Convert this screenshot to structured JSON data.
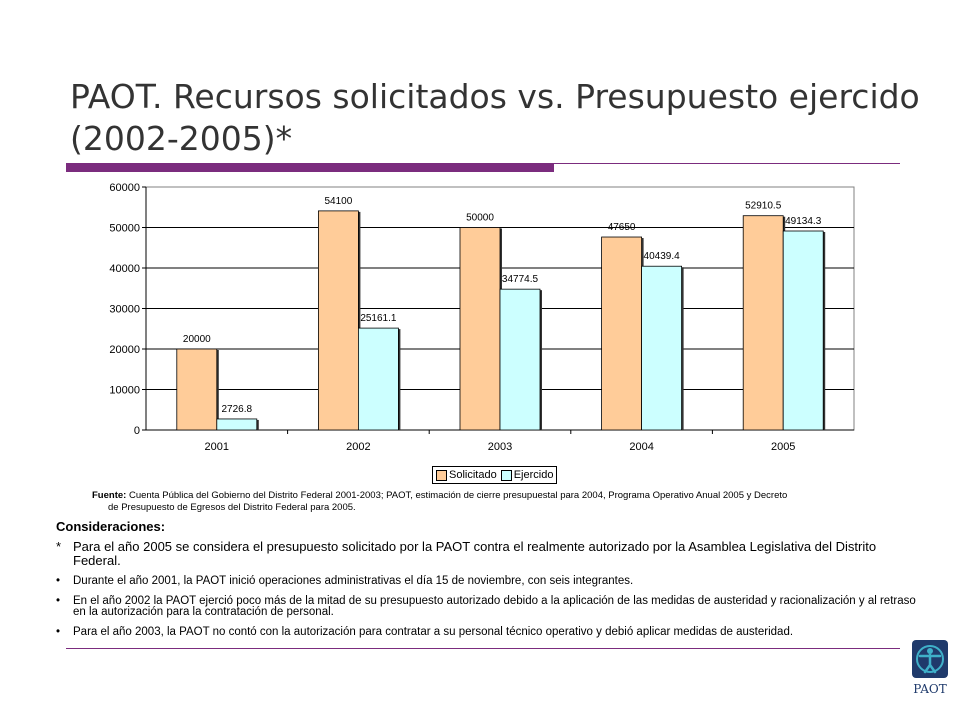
{
  "slide": {
    "title": "PAOT. Recursos solicitados vs. Presupuesto ejercido (2002-2005)*",
    "colors": {
      "accent": "#7b2c7e",
      "solicitado": "#ffcc99",
      "ejercido": "#ccffff"
    }
  },
  "chart_data": {
    "type": "bar",
    "categories": [
      "2001",
      "2002",
      "2003",
      "2004",
      "2005"
    ],
    "series": [
      {
        "name": "Solicitado",
        "values": [
          20000,
          54100,
          50000,
          47650,
          52910.5
        ],
        "labels": [
          "20000",
          "54100",
          "50000",
          "47650",
          "52910.5"
        ]
      },
      {
        "name": "Ejercido",
        "values": [
          2726.8,
          25161.1,
          34774.5,
          40439.4,
          49134.3
        ],
        "labels": [
          "2726.8",
          "25161.1",
          "34774.5",
          "40439.4",
          "49134.3"
        ]
      }
    ],
    "ylim": [
      0,
      60000
    ],
    "yticks": [
      "0",
      "10000",
      "20000",
      "30000",
      "40000",
      "50000",
      "60000"
    ],
    "grid": true,
    "legend": "bottom-center",
    "title": "",
    "xlabel": "",
    "ylabel": ""
  },
  "source": {
    "label": "Fuente:",
    "line1": "Cuenta Pública del Gobierno del Distrito Federal 2001-2003; PAOT, estimación de cierre presupuestal para 2004, Programa Operativo Anual 2005 y Decreto",
    "line2": "de Presupuesto de Egresos  del Distrito Federal para 2005."
  },
  "notes": {
    "heading": "Consideraciones:",
    "items": [
      {
        "bullet": "*",
        "text": "Para el año 2005 se considera el presupuesto solicitado  por la PAOT contra el realmente autorizado por la Asamblea Legislativa del  Distrito Federal."
      },
      {
        "bullet": "•",
        "text": "Durante el año 2001, la PAOT inició operaciones administrativas el día 15 de noviembre,  con seis integrantes."
      },
      {
        "bullet": "•",
        "text": "En el año 2002 la PAOT ejerció poco más de la mitad de su presupuesto autorizado debido a la aplicación de las medidas de austeridad y racionalización y al retraso en la autorización para la contratación de personal."
      },
      {
        "bullet": "•",
        "text": "Para el año 2003, la PAOT no contó con la autorización para contratar a su personal técnico operativo y debió aplicar medidas de austeridad."
      }
    ]
  },
  "logo": {
    "text": "PAOT",
    "icon": "paot-figure-icon"
  }
}
